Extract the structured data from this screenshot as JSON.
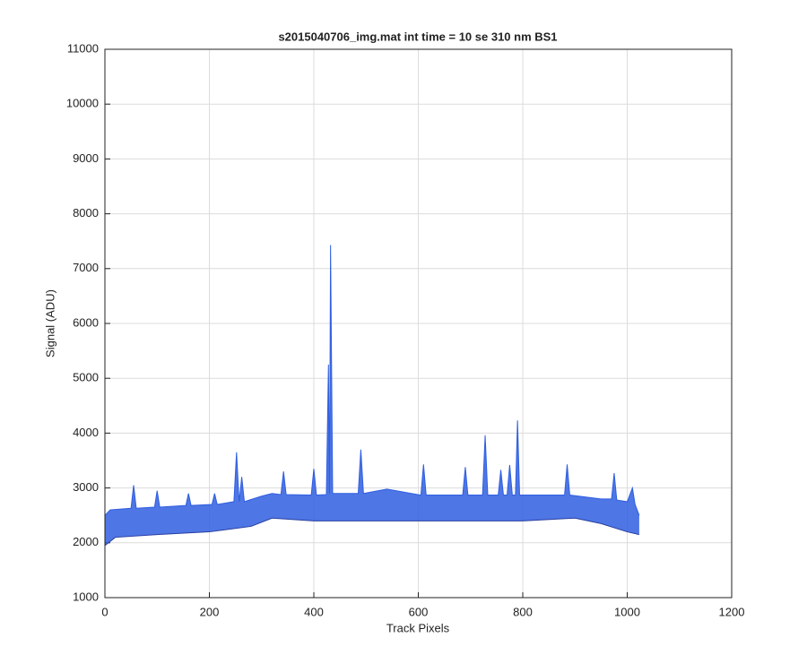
{
  "chart_data": {
    "type": "line",
    "title": "s2015040706_img.mat int time = 10 se  310 nm BS1",
    "x_label": "Track Pixels",
    "y_label": "Signal (ADU)",
    "xlim": [
      0,
      1200
    ],
    "xticks": [
      0,
      200,
      400,
      600,
      800,
      1000,
      1200
    ],
    "ylim": [
      1000,
      11000
    ],
    "yticks": [
      1000,
      2000,
      3000,
      4000,
      5000,
      6000,
      7000,
      8000,
      9000,
      10000,
      11000
    ],
    "grid": true,
    "fill_between": true,
    "series": [
      {
        "color": "#2f5ee0",
        "x": [
          0,
          10,
          50,
          55,
          60,
          95,
          100,
          105,
          155,
          160,
          165,
          205,
          210,
          215,
          247,
          252,
          257,
          262,
          267,
          300,
          320,
          337,
          342,
          347,
          395,
          400,
          405,
          424,
          428,
          430,
          432,
          436,
          485,
          490,
          495,
          540,
          605,
          610,
          615,
          685,
          690,
          695,
          723,
          728,
          733,
          753,
          758,
          763,
          770,
          775,
          780,
          786,
          790,
          794,
          880,
          885,
          890,
          950,
          970,
          975,
          980,
          1000,
          1010,
          1015,
          1023
        ],
        "values": [
          2500,
          2600,
          2630,
          3050,
          2630,
          2650,
          2950,
          2650,
          2680,
          2900,
          2680,
          2700,
          2900,
          2700,
          2750,
          3650,
          2750,
          3200,
          2750,
          2850,
          2900,
          2880,
          3300,
          2880,
          2870,
          3350,
          2870,
          2880,
          5250,
          2900,
          7430,
          2900,
          2900,
          3700,
          2900,
          2980,
          2870,
          3430,
          2870,
          2870,
          3380,
          2870,
          2870,
          3960,
          2870,
          2870,
          3330,
          2870,
          2870,
          3420,
          2870,
          2870,
          4230,
          2870,
          2870,
          3430,
          2870,
          2800,
          2800,
          3270,
          2780,
          2750,
          3000,
          2700,
          2500
        ]
      },
      {
        "color": "#2a3f9e",
        "x": [
          0,
          20,
          100,
          200,
          280,
          320,
          400,
          600,
          800,
          900,
          950,
          1000,
          1023
        ],
        "values": [
          1950,
          2100,
          2150,
          2200,
          2300,
          2450,
          2400,
          2400,
          2400,
          2450,
          2350,
          2200,
          2150
        ]
      }
    ]
  }
}
